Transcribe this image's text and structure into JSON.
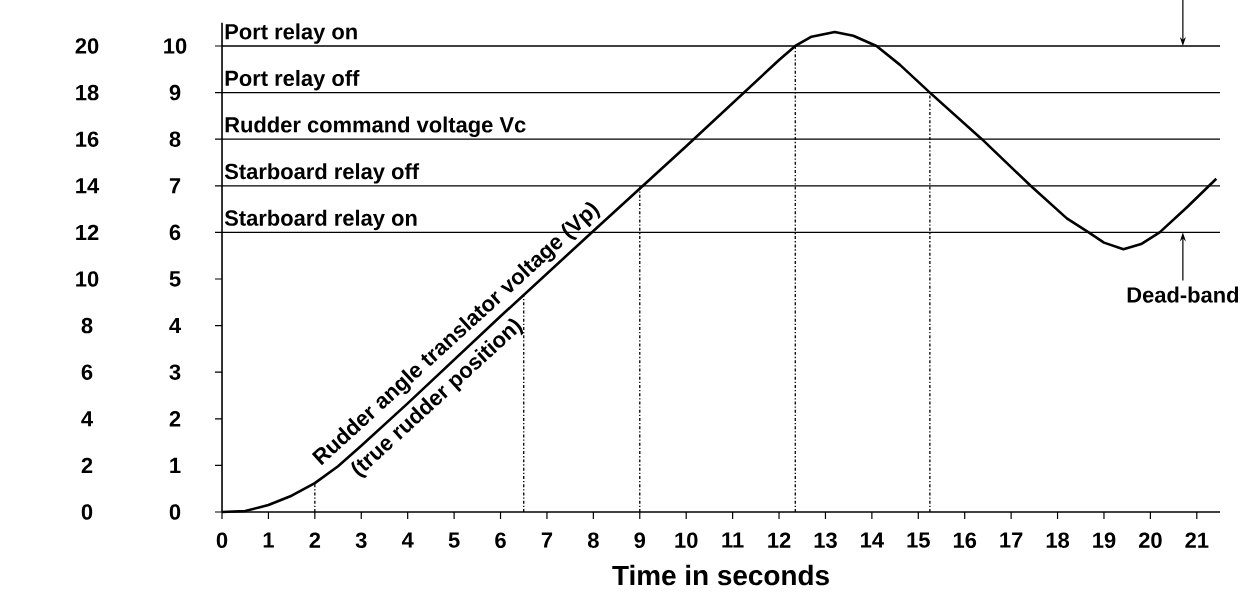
{
  "chart_data": {
    "type": "line",
    "xlabel": "Time in seconds",
    "xlim": [
      0,
      21.5
    ],
    "xticks": [
      0,
      1,
      2,
      3,
      4,
      5,
      6,
      7,
      8,
      9,
      10,
      11,
      12,
      13,
      14,
      15,
      16,
      17,
      18,
      19,
      20,
      21
    ],
    "ylim": [
      0,
      10.5
    ],
    "yticks": [
      0,
      1,
      2,
      3,
      4,
      5,
      6,
      7,
      8,
      9,
      10
    ],
    "y2lim": [
      0,
      21
    ],
    "y2ticks": [
      0,
      2,
      4,
      6,
      8,
      10,
      12,
      14,
      16,
      18,
      20
    ],
    "series": [
      {
        "color": "#000000",
        "x": [
          0,
          0.5,
          1,
          1.5,
          2,
          2.5,
          3,
          4,
          6,
          8,
          10,
          12,
          12.35,
          12.7,
          13.2,
          13.6,
          14.1,
          14.6,
          15.25,
          16.37,
          17.42,
          18.2,
          18.67,
          19.0,
          19.42,
          19.8,
          20.2,
          20.8,
          21.42
        ],
        "values": [
          0,
          0.02,
          0.15,
          0.35,
          0.62,
          0.98,
          1.42,
          2.33,
          4.2,
          6.03,
          7.85,
          9.7,
          10.0,
          10.2,
          10.3,
          10.22,
          10.0,
          9.6,
          9.0,
          8.0,
          7.0,
          6.3,
          6.0,
          5.78,
          5.64,
          5.75,
          6.0,
          6.55,
          7.15
        ]
      },
      {
        "color": "#000000",
        "line_style": "dashdot",
        "x": [
          2,
          2
        ],
        "values": [
          0,
          0.62
        ]
      },
      {
        "color": "#000000",
        "line_style": "dashdot",
        "x": [
          6.5,
          6.5
        ],
        "values": [
          0,
          4.66
        ]
      },
      {
        "color": "#000000",
        "line_style": "dashdot",
        "x": [
          9,
          9
        ],
        "values": [
          0,
          7.0
        ]
      },
      {
        "color": "#000000",
        "line_style": "dashdot",
        "x": [
          12.35,
          12.35
        ],
        "values": [
          0,
          10.0
        ]
      },
      {
        "color": "#000000",
        "line_style": "dashdot",
        "x": [
          15.25,
          15.25
        ],
        "values": [
          0,
          9.0
        ]
      }
    ],
    "ref_lines": [
      {
        "axis": "y",
        "value": 10,
        "label": "Port relay on"
      },
      {
        "axis": "y",
        "value": 9,
        "label": "Port relay off"
      },
      {
        "axis": "y",
        "value": 8,
        "label": "Rudder command voltage Vc"
      },
      {
        "axis": "y",
        "value": 7,
        "label": "Starboard relay off"
      },
      {
        "axis": "y",
        "value": 6,
        "label": "Starboard relay on"
      }
    ],
    "annotations": [
      {
        "text": "Rudder angle translator voltage (Vp)",
        "x": 5.3,
        "y": 3.55
      },
      {
        "text": "(true rudder position)",
        "x": 4.4,
        "y": 2.7
      },
      {
        "text": "Dead-band",
        "x": 20.7,
        "y": 6
      }
    ]
  }
}
